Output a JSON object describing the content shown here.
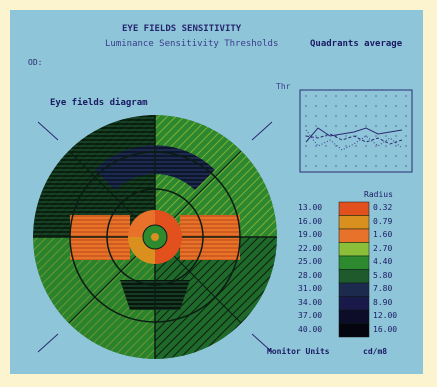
{
  "header": {
    "title": "EYE FIELDS SENSITIVITY",
    "subtitle": "Luminance Sensitivity Thresholds",
    "quadrants_title": "Quadrants average",
    "eye": "OD:"
  },
  "diagram": {
    "label": "Eye fields diagram"
  },
  "quadrants_chart": {
    "label": "Thr"
  },
  "scale": {
    "radius_header": "Radius",
    "left_units": "Monitor Units",
    "right_units": "cd/m8",
    "levels": [
      {
        "value": "13.00",
        "radius": "0.32",
        "color": "#e2501e"
      },
      {
        "value": "16.00",
        "radius": "0.79",
        "color": "#d9901f"
      },
      {
        "value": "19.00",
        "radius": "1.60",
        "color": "#e9722a"
      },
      {
        "value": "22.00",
        "radius": "2.70",
        "color": "#8bbf3a"
      },
      {
        "value": "25.00",
        "radius": "4.40",
        "color": "#2e8a2e"
      },
      {
        "value": "28.00",
        "radius": "5.80",
        "color": "#1f5a2c"
      },
      {
        "value": "31.00",
        "radius": "7.80",
        "color": "#1c2a4e"
      },
      {
        "value": "34.00",
        "radius": "8.90",
        "color": "#1a1a4a"
      },
      {
        "value": "37.00",
        "radius": "12.00",
        "color": "#0d0d2a"
      },
      {
        "value": "40.00",
        "radius": "16.00",
        "color": "#050510"
      }
    ]
  },
  "colors": {
    "background": "#fcf3cf",
    "panel": "#8fc5d9",
    "text": "#1a1a62"
  }
}
